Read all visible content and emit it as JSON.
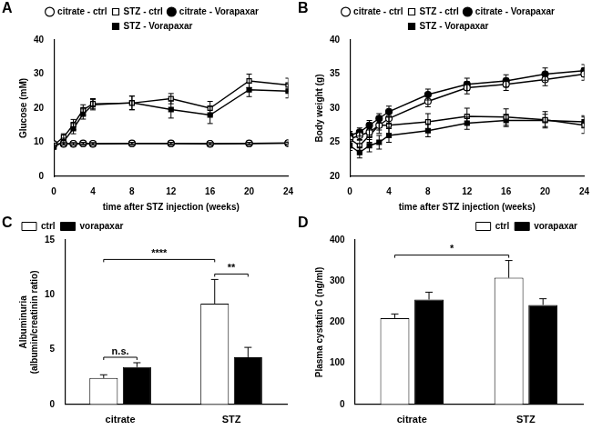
{
  "chart_data": [
    {
      "label": "A",
      "type": "line",
      "ylabel": "Glucose (mM)",
      "xlabel": "time after STZ injection (weeks)",
      "x": [
        0,
        1,
        2,
        3,
        4,
        8,
        12,
        16,
        20,
        24
      ],
      "xlim": [
        0,
        24
      ],
      "xticks": [
        0,
        4,
        8,
        12,
        16,
        20,
        24
      ],
      "ylim": [
        0,
        40
      ],
      "yticks": [
        0,
        10,
        20,
        30,
        40
      ],
      "grid": false,
      "legend": "top",
      "series": [
        {
          "name": "citrate - ctrl",
          "color": "#000000",
          "marker": "circle_open",
          "values": [
            9.5,
            9.6,
            9.6,
            9.7,
            9.6,
            9.7,
            9.7,
            9.6,
            9.7,
            9.8
          ],
          "errors": [
            0.3,
            0.3,
            0.3,
            0.3,
            0.3,
            0.3,
            0.3,
            0.3,
            0.3,
            0.3
          ]
        },
        {
          "name": "STZ - ctrl",
          "color": "#000000",
          "marker": "square_open",
          "values": [
            9.2,
            11.5,
            15.2,
            19.5,
            21.3,
            21.5,
            22.8,
            20.0,
            28.0,
            26.8
          ],
          "errors": [
            0.5,
            1.0,
            1.5,
            1.5,
            1.5,
            2.0,
            1.5,
            2.0,
            2.0,
            2.0
          ]
        },
        {
          "name": "citrate - Vorapaxar",
          "color": "#000000",
          "marker": "circle",
          "values": [
            9.4,
            9.5,
            9.5,
            9.6,
            9.5,
            9.6,
            9.6,
            9.5,
            9.6,
            9.7
          ],
          "errors": [
            0.3,
            0.3,
            0.3,
            0.3,
            0.3,
            0.3,
            0.3,
            0.3,
            0.3,
            0.3
          ]
        },
        {
          "name": "STZ - Vorapaxar",
          "color": "#000000",
          "marker": "square",
          "values": [
            8.6,
            10.2,
            14.0,
            18.3,
            21.0,
            21.6,
            19.6,
            18.0,
            25.4,
            25.0
          ],
          "errors": [
            0.5,
            1.0,
            1.5,
            1.5,
            1.5,
            2.0,
            2.5,
            2.5,
            2.0,
            2.0
          ]
        }
      ]
    },
    {
      "label": "B",
      "type": "line",
      "ylabel": "Body weight (g)",
      "xlabel": "time after STZ injection (weeks)",
      "x": [
        0,
        1,
        2,
        3,
        4,
        8,
        12,
        16,
        20,
        24
      ],
      "xlim": [
        0,
        24
      ],
      "xticks": [
        0,
        4,
        8,
        12,
        16,
        20,
        24
      ],
      "ylim": [
        20,
        40
      ],
      "yticks": [
        20,
        25,
        30,
        35,
        40
      ],
      "grid": false,
      "legend": "top",
      "series": [
        {
          "name": "citrate - ctrl",
          "color": "#000000",
          "marker": "circle_open",
          "values": [
            25.5,
            26.0,
            26.5,
            27.5,
            28.5,
            31.0,
            33.0,
            33.5,
            34.2,
            35.0
          ],
          "errors": [
            0.6,
            0.6,
            0.7,
            0.7,
            0.8,
            0.8,
            0.9,
            0.9,
            0.9,
            0.9
          ]
        },
        {
          "name": "STZ - ctrl",
          "color": "#000000",
          "marker": "square_open",
          "values": [
            25.5,
            24.5,
            26.0,
            27.5,
            27.5,
            28.0,
            28.8,
            28.7,
            28.3,
            27.5
          ],
          "errors": [
            0.7,
            0.8,
            1.0,
            1.2,
            1.2,
            1.2,
            1.2,
            1.2,
            1.2,
            1.2
          ]
        },
        {
          "name": "citrate - Vorapaxar",
          "color": "#000000",
          "marker": "circle",
          "values": [
            26.0,
            26.5,
            27.5,
            28.5,
            29.5,
            32.0,
            33.5,
            34.0,
            35.0,
            35.5
          ],
          "errors": [
            0.6,
            0.6,
            0.7,
            0.7,
            0.8,
            0.8,
            0.9,
            0.9,
            0.9,
            0.9
          ]
        },
        {
          "name": "STZ - Vorapaxar",
          "color": "#000000",
          "marker": "square",
          "values": [
            24.5,
            23.5,
            24.5,
            25.0,
            26.0,
            26.7,
            27.8,
            28.2,
            28.2,
            28.0
          ],
          "errors": [
            0.7,
            0.8,
            0.9,
            1.0,
            1.0,
            0.9,
            0.9,
            0.9,
            0.9,
            0.9
          ]
        }
      ]
    },
    {
      "label": "C",
      "type": "bar",
      "ylabel": [
        "Albuminuria",
        "(albumin/creatinin ratio)"
      ],
      "categories": [
        "citrate",
        "STZ"
      ],
      "ylim": [
        0,
        15
      ],
      "yticks": [
        0,
        5,
        10,
        15
      ],
      "grid": false,
      "legend": "top-left",
      "series": [
        {
          "name": "ctrl",
          "color": "#ffffff",
          "values": [
            2.4,
            9.2
          ],
          "errors": [
            0.3,
            2.2
          ]
        },
        {
          "name": "vorapaxar",
          "color": "#000000",
          "values": [
            3.4,
            4.3
          ],
          "errors": [
            0.4,
            0.9
          ]
        }
      ],
      "annotations": [
        {
          "text": "n.s.",
          "from": {
            "category": "citrate",
            "series": "ctrl"
          },
          "to": {
            "category": "citrate",
            "series": "vorapaxar"
          }
        },
        {
          "text": "**",
          "from": {
            "category": "STZ",
            "series": "ctrl"
          },
          "to": {
            "category": "STZ",
            "series": "vorapaxar"
          }
        },
        {
          "text": "****",
          "from": {
            "category": "citrate",
            "series": "ctrl"
          },
          "to": {
            "category": "STZ",
            "series": "ctrl"
          }
        }
      ]
    },
    {
      "label": "D",
      "type": "bar",
      "ylabel": "Plasma cystatin C (ng/ml)",
      "categories": [
        "citrate",
        "STZ"
      ],
      "ylim": [
        0,
        400
      ],
      "yticks": [
        0,
        100,
        200,
        300,
        400
      ],
      "grid": false,
      "legend": "top-right",
      "series": [
        {
          "name": "ctrl",
          "color": "#ffffff",
          "values": [
            210,
            308
          ],
          "errors": [
            10,
            42
          ]
        },
        {
          "name": "vorapaxar",
          "color": "#000000",
          "values": [
            255,
            242
          ],
          "errors": [
            18,
            15
          ]
        }
      ],
      "annotations": [
        {
          "text": "*",
          "from": {
            "category": "citrate",
            "series": "ctrl"
          },
          "to": {
            "category": "STZ",
            "series": "ctrl"
          }
        }
      ]
    }
  ]
}
